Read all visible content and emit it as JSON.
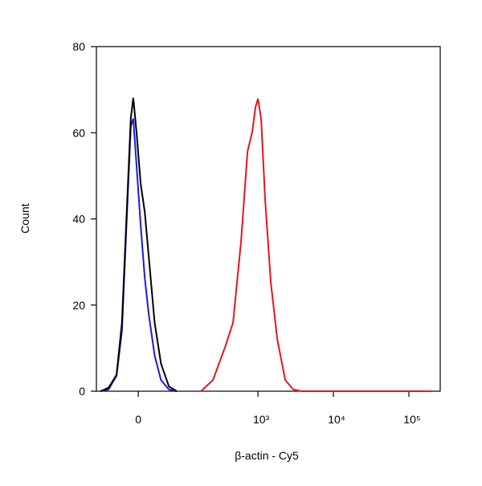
{
  "chart_data": {
    "type": "line",
    "x_label": "β-actin - Cy5",
    "y_label": "Count",
    "xscale": "asinh",
    "xscale_cofactor": 52,
    "xlim": [
      -86,
      260000
    ],
    "ylim": [
      0,
      80
    ],
    "xticks": [
      0,
      {
        "value": 1000,
        "label": "10³"
      },
      {
        "value": 10000,
        "label": "10⁴"
      },
      {
        "value": 100000,
        "label": "10⁵"
      }
    ],
    "yticks": [
      0,
      20,
      40,
      60,
      80
    ],
    "series": [
      {
        "color": "#1a1ae6",
        "x": [
          -74,
          -54,
          -37,
          -27,
          -18,
          -12,
          -8,
          -2.5,
          3.8,
          10.3,
          17,
          27,
          39,
          56,
          76
        ],
        "values": [
          0,
          0.4,
          3.6,
          14.0,
          42.2,
          61.4,
          63.3,
          51.8,
          38.6,
          26.3,
          17.8,
          8.3,
          2.6,
          0.4,
          0
        ]
      },
      {
        "color": "#000000",
        "x": [
          -74,
          -54,
          -37,
          -27,
          -18,
          -12,
          -8,
          -2.5,
          3.8,
          10.3,
          17,
          27,
          39,
          56,
          76
        ],
        "values": [
          0,
          0.8,
          3.8,
          15.9,
          44.0,
          63.3,
          68.1,
          59.6,
          48.2,
          41.6,
          31.2,
          15.9,
          6.4,
          1.1,
          0
        ]
      },
      {
        "color": "#e8141c",
        "x": [
          172,
          251,
          365,
          467,
          597,
          727,
          843,
          929,
          1000,
          1103,
          1246,
          1480,
          1800,
          2300,
          2940,
          3760,
          200000
        ],
        "values": [
          0,
          2.6,
          10.2,
          15.9,
          34.8,
          55.6,
          60.3,
          66.0,
          67.9,
          63.2,
          44.3,
          25.3,
          12.1,
          2.6,
          0.4,
          0,
          0
        ]
      }
    ]
  }
}
